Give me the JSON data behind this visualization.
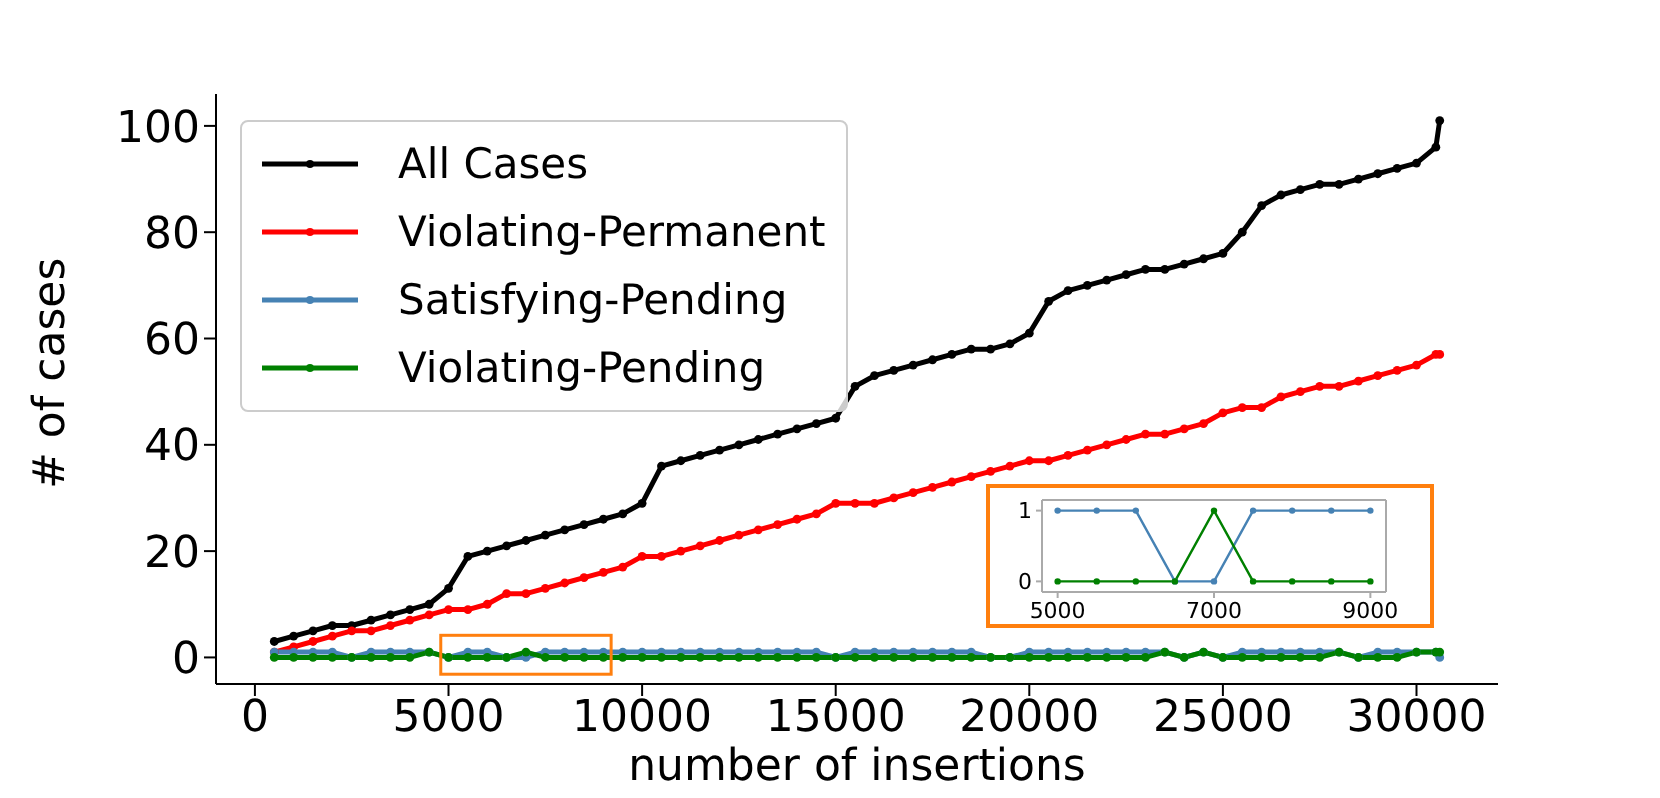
{
  "chart_data": [
    {
      "type": "line",
      "xlabel": "number of insertions",
      "ylabel": "# of cases",
      "x": [
        500,
        1000,
        1500,
        2000,
        2500,
        3000,
        3500,
        4000,
        4500,
        5000,
        5500,
        6000,
        6500,
        7000,
        7500,
        8000,
        8500,
        9000,
        9500,
        10000,
        10500,
        11000,
        11500,
        12000,
        12500,
        13000,
        13500,
        14000,
        14500,
        15000,
        15500,
        16000,
        16500,
        17000,
        17500,
        18000,
        18500,
        19000,
        19500,
        20000,
        20500,
        21000,
        21500,
        22000,
        22500,
        23000,
        23500,
        24000,
        24500,
        25000,
        25500,
        26000,
        26500,
        27000,
        27500,
        28000,
        28500,
        29000,
        29500,
        30000,
        30500,
        30600
      ],
      "series": [
        {
          "name": "All Cases",
          "color": "#000000",
          "values": [
            3,
            4,
            5,
            6,
            6,
            7,
            8,
            9,
            10,
            13,
            19,
            20,
            21,
            22,
            23,
            24,
            25,
            26,
            27,
            29,
            36,
            37,
            38,
            39,
            40,
            41,
            42,
            43,
            44,
            45,
            51,
            53,
            54,
            55,
            56,
            57,
            58,
            58,
            59,
            61,
            67,
            69,
            70,
            71,
            72,
            73,
            73,
            74,
            75,
            76,
            80,
            85,
            87,
            88,
            89,
            89,
            90,
            91,
            92,
            93,
            96,
            101
          ]
        },
        {
          "name": "Violating-Permanent",
          "color": "#ff0000",
          "values": [
            1,
            2,
            3,
            4,
            5,
            5,
            6,
            7,
            8,
            9,
            9,
            10,
            12,
            12,
            13,
            14,
            15,
            16,
            17,
            19,
            19,
            20,
            21,
            22,
            23,
            24,
            25,
            26,
            27,
            29,
            29,
            29,
            30,
            31,
            32,
            33,
            34,
            35,
            36,
            37,
            37,
            38,
            39,
            40,
            41,
            42,
            42,
            43,
            44,
            46,
            47,
            47,
            49,
            50,
            51,
            51,
            52,
            53,
            54,
            55,
            57,
            57
          ]
        },
        {
          "name": "Satisfying-Pending",
          "color": "#4682b4",
          "values": [
            1,
            1,
            1,
            1,
            0,
            1,
            1,
            1,
            1,
            0,
            1,
            1,
            0,
            0,
            1,
            1,
            1,
            1,
            1,
            1,
            1,
            1,
            1,
            1,
            1,
            1,
            1,
            1,
            1,
            0,
            1,
            1,
            1,
            1,
            1,
            1,
            1,
            0,
            0,
            1,
            1,
            1,
            1,
            1,
            1,
            1,
            1,
            0,
            1,
            0,
            1,
            1,
            1,
            1,
            1,
            1,
            0,
            1,
            1,
            1,
            1,
            0
          ]
        },
        {
          "name": "Violating-Pending",
          "color": "#008000",
          "values": [
            0,
            0,
            0,
            0,
            0,
            0,
            0,
            0,
            1,
            0,
            0,
            0,
            0,
            1,
            0,
            0,
            0,
            0,
            0,
            0,
            0,
            0,
            0,
            0,
            0,
            0,
            0,
            0,
            0,
            0,
            0,
            0,
            0,
            0,
            0,
            0,
            0,
            0,
            0,
            0,
            0,
            0,
            0,
            0,
            0,
            0,
            1,
            0,
            1,
            0,
            0,
            0,
            0,
            0,
            0,
            1,
            0,
            0,
            0,
            1,
            1,
            1
          ]
        }
      ],
      "xlim": [
        -1005,
        32105
      ],
      "ylim": [
        -5,
        106
      ],
      "xticks": [
        0,
        5000,
        10000,
        15000,
        20000,
        25000,
        30000
      ],
      "yticks": [
        0,
        20,
        40,
        60,
        80,
        100
      ],
      "grid": false,
      "legend": "top left",
      "marker": "circle",
      "line_style": "solid"
    },
    {
      "type": "line",
      "x": [
        5000,
        5500,
        6000,
        6500,
        7000,
        7500,
        8000,
        8500,
        9000
      ],
      "series": [
        {
          "color": "#4682b4",
          "values": [
            1,
            1,
            1,
            0,
            0,
            1,
            1,
            1,
            1
          ]
        },
        {
          "color": "#008000",
          "values": [
            0,
            0,
            0,
            0,
            1,
            0,
            0,
            0,
            0
          ]
        }
      ],
      "xlim": [
        4800,
        9200
      ],
      "ylim": [
        -0.15,
        1.15
      ],
      "xticks": [
        5000,
        7000,
        9000
      ],
      "yticks": [
        0,
        1
      ],
      "grid": false,
      "marker": "circle",
      "line_style": "solid"
    }
  ]
}
